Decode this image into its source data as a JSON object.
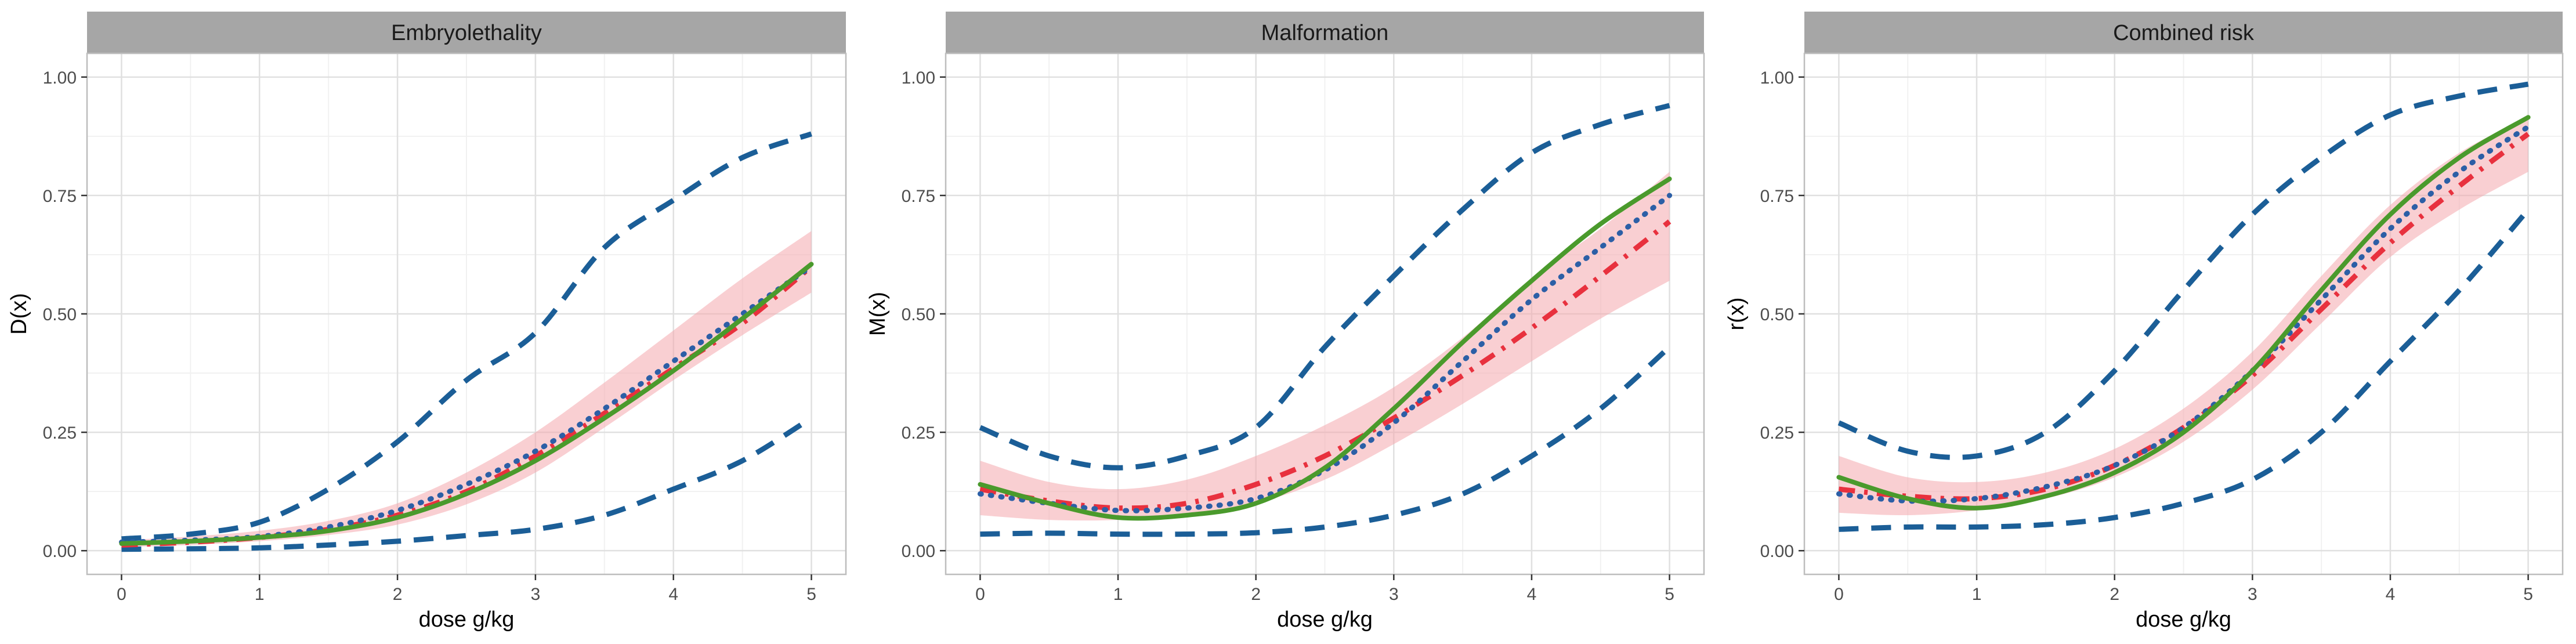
{
  "colors": {
    "panel_border": "#bdbdbd",
    "grid_major": "#e0e0e0",
    "grid_minor": "#f1f1f1",
    "strip_bg": "#a6a6a6",
    "ci_band": "#f4a7ad",
    "ci_dashed": "#1b5e97",
    "red_dashdot": "#e8313e",
    "blue_dotted": "#2c5fa6",
    "green_solid": "#4a9a2c"
  },
  "chart_data": [
    {
      "type": "line",
      "title": "Embryolethality",
      "xlabel": "dose g/kg",
      "ylabel": "D(x)",
      "xlim": [
        -0.25,
        5.25
      ],
      "ylim": [
        -0.05,
        1.05
      ],
      "x_ticks": [
        0,
        1,
        2,
        3,
        4,
        5
      ],
      "x_tick_labels": [
        "0",
        "1",
        "2",
        "3",
        "4",
        "5"
      ],
      "y_ticks": [
        0,
        0.25,
        0.5,
        0.75,
        1
      ],
      "y_tick_labels": [
        "0.00",
        "0.25",
        "0.50",
        "0.75",
        "1.00"
      ],
      "x": [
        0,
        0.5,
        1,
        1.5,
        2,
        2.5,
        3,
        3.5,
        4,
        4.5,
        5
      ],
      "band": {
        "lower": [
          0.008,
          0.012,
          0.02,
          0.033,
          0.055,
          0.098,
          0.165,
          0.26,
          0.36,
          0.455,
          0.545
        ],
        "upper": [
          0.022,
          0.03,
          0.042,
          0.063,
          0.1,
          0.165,
          0.25,
          0.355,
          0.465,
          0.575,
          0.675
        ]
      },
      "series": [
        {
          "name": "upper dashed",
          "style": "dashed",
          "values": [
            0.025,
            0.035,
            0.06,
            0.13,
            0.23,
            0.36,
            0.46,
            0.64,
            0.74,
            0.83,
            0.88
          ]
        },
        {
          "name": "lower dashed",
          "style": "dashed",
          "values": [
            0.003,
            0.004,
            0.006,
            0.012,
            0.02,
            0.032,
            0.045,
            0.075,
            0.13,
            0.19,
            0.28
          ]
        },
        {
          "name": "red dash-dot",
          "style": "dashdot",
          "values": [
            0.012,
            0.018,
            0.028,
            0.045,
            0.075,
            0.125,
            0.2,
            0.29,
            0.385,
            0.48,
            0.6
          ]
        },
        {
          "name": "blue dotted",
          "style": "dotted",
          "values": [
            0.018,
            0.022,
            0.03,
            0.05,
            0.085,
            0.14,
            0.21,
            0.3,
            0.4,
            0.5,
            0.6
          ]
        },
        {
          "name": "green solid",
          "style": "solid",
          "values": [
            0.015,
            0.02,
            0.028,
            0.042,
            0.07,
            0.12,
            0.19,
            0.28,
            0.38,
            0.49,
            0.605
          ]
        }
      ]
    },
    {
      "type": "line",
      "title": "Malformation",
      "xlabel": "dose g/kg",
      "ylabel": "M(x)",
      "xlim": [
        -0.25,
        5.25
      ],
      "ylim": [
        -0.05,
        1.05
      ],
      "x_ticks": [
        0,
        1,
        2,
        3,
        4,
        5
      ],
      "x_tick_labels": [
        "0",
        "1",
        "2",
        "3",
        "4",
        "5"
      ],
      "y_ticks": [
        0,
        0.25,
        0.5,
        0.75,
        1
      ],
      "y_tick_labels": [
        "0.00",
        "0.25",
        "0.50",
        "0.75",
        "1.00"
      ],
      "x": [
        0,
        0.5,
        1,
        1.5,
        2,
        2.5,
        3,
        3.5,
        4,
        4.5,
        5
      ],
      "band": {
        "lower": [
          0.075,
          0.065,
          0.065,
          0.075,
          0.1,
          0.15,
          0.225,
          0.31,
          0.4,
          0.49,
          0.57
        ],
        "upper": [
          0.19,
          0.145,
          0.13,
          0.15,
          0.2,
          0.265,
          0.345,
          0.45,
          0.575,
          0.68,
          0.8
        ]
      },
      "series": [
        {
          "name": "upper dashed",
          "style": "dashed",
          "values": [
            0.26,
            0.2,
            0.175,
            0.2,
            0.26,
            0.43,
            0.58,
            0.72,
            0.84,
            0.9,
            0.94
          ]
        },
        {
          "name": "lower dashed",
          "style": "dashed",
          "values": [
            0.035,
            0.037,
            0.035,
            0.035,
            0.038,
            0.05,
            0.075,
            0.12,
            0.2,
            0.3,
            0.43
          ]
        },
        {
          "name": "red dash-dot",
          "style": "dashdot",
          "values": [
            0.13,
            0.105,
            0.09,
            0.1,
            0.14,
            0.2,
            0.28,
            0.37,
            0.47,
            0.58,
            0.695
          ]
        },
        {
          "name": "blue dotted",
          "style": "dotted",
          "values": [
            0.12,
            0.1,
            0.085,
            0.09,
            0.11,
            0.17,
            0.27,
            0.4,
            0.53,
            0.64,
            0.75
          ]
        },
        {
          "name": "green solid",
          "style": "solid",
          "values": [
            0.14,
            0.1,
            0.07,
            0.075,
            0.1,
            0.175,
            0.3,
            0.44,
            0.57,
            0.69,
            0.785
          ]
        }
      ]
    },
    {
      "type": "line",
      "title": "Combined risk",
      "xlabel": "dose g/kg",
      "ylabel": "r(x)",
      "xlim": [
        -0.25,
        5.25
      ],
      "ylim": [
        -0.05,
        1.05
      ],
      "x_ticks": [
        0,
        1,
        2,
        3,
        4,
        5
      ],
      "x_tick_labels": [
        "0",
        "1",
        "2",
        "3",
        "4",
        "5"
      ],
      "y_ticks": [
        0,
        0.25,
        0.5,
        0.75,
        1
      ],
      "y_tick_labels": [
        "0.00",
        "0.25",
        "0.50",
        "0.75",
        "1.00"
      ],
      "x": [
        0,
        0.5,
        1,
        1.5,
        2,
        2.5,
        3,
        3.5,
        4,
        4.5,
        5
      ],
      "band": {
        "lower": [
          0.08,
          0.075,
          0.085,
          0.11,
          0.155,
          0.23,
          0.34,
          0.48,
          0.62,
          0.72,
          0.8
        ],
        "upper": [
          0.2,
          0.155,
          0.145,
          0.165,
          0.215,
          0.3,
          0.42,
          0.58,
          0.73,
          0.84,
          0.915
        ]
      },
      "series": [
        {
          "name": "upper dashed",
          "style": "dashed",
          "values": [
            0.27,
            0.21,
            0.2,
            0.25,
            0.38,
            0.55,
            0.71,
            0.83,
            0.92,
            0.96,
            0.985
          ]
        },
        {
          "name": "lower dashed",
          "style": "dashed",
          "values": [
            0.045,
            0.05,
            0.05,
            0.055,
            0.07,
            0.1,
            0.15,
            0.25,
            0.4,
            0.55,
            0.72
          ]
        },
        {
          "name": "red dash-dot",
          "style": "dashdot",
          "values": [
            0.13,
            0.115,
            0.11,
            0.13,
            0.18,
            0.26,
            0.37,
            0.51,
            0.65,
            0.77,
            0.88
          ]
        },
        {
          "name": "blue dotted",
          "style": "dotted",
          "values": [
            0.12,
            0.105,
            0.11,
            0.135,
            0.18,
            0.26,
            0.38,
            0.53,
            0.68,
            0.8,
            0.895
          ]
        },
        {
          "name": "green solid",
          "style": "solid",
          "values": [
            0.155,
            0.11,
            0.09,
            0.115,
            0.165,
            0.25,
            0.38,
            0.55,
            0.71,
            0.83,
            0.915
          ]
        }
      ]
    }
  ]
}
